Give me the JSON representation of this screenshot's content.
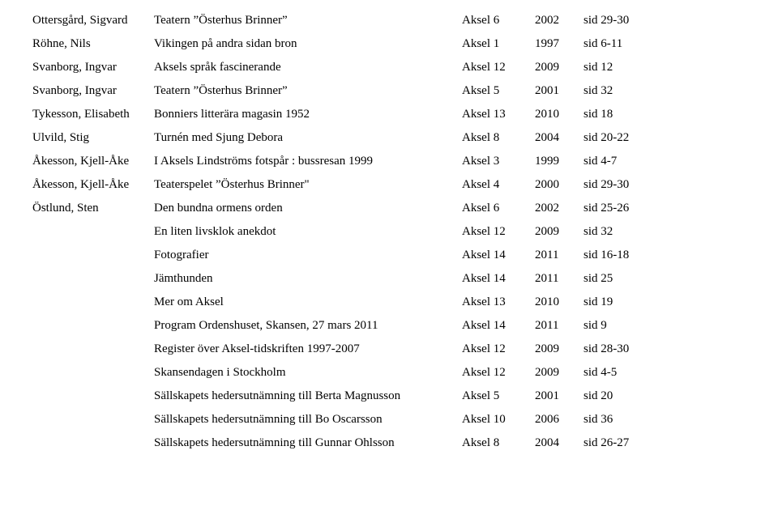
{
  "rows": [
    {
      "author": "Ottersgård, Sigvard",
      "title": "Teatern ”Österhus Brinner”",
      "vol": "Aksel 6",
      "year": "2002",
      "page": "sid 29-30"
    },
    {
      "author": "Röhne, Nils",
      "title": "Vikingen på andra sidan bron",
      "vol": "Aksel 1",
      "year": "1997",
      "page": "sid 6-11"
    },
    {
      "author": "Svanborg, Ingvar",
      "title": "Aksels språk fascinerande",
      "vol": "Aksel 12",
      "year": "2009",
      "page": "sid 12"
    },
    {
      "author": "Svanborg, Ingvar",
      "title": "Teatern ”Österhus Brinner”",
      "vol": "Aksel 5",
      "year": "2001",
      "page": "sid 32"
    },
    {
      "author": "Tykesson, Elisabeth",
      "title": "Bonniers litterära magasin 1952",
      "vol": "Aksel 13",
      "year": "2010",
      "page": "sid 18"
    },
    {
      "author": "Ulvild, Stig",
      "title": "Turnén med Sjung Debora",
      "vol": "Aksel 8",
      "year": "2004",
      "page": "sid 20-22"
    },
    {
      "author": "Åkesson, Kjell-Åke",
      "title": "I Aksels Lindströms fotspår : bussresan 1999",
      "vol": "Aksel 3",
      "year": "1999",
      "page": "sid 4-7"
    },
    {
      "author": "Åkesson, Kjell-Åke",
      "title": "Teaterspelet ”Österhus Brinner\"",
      "vol": "Aksel 4",
      "year": "2000",
      "page": "sid 29-30"
    },
    {
      "author": "Östlund, Sten",
      "title": "Den bundna ormens orden",
      "vol": "Aksel 6",
      "year": "2002",
      "page": "sid 25-26"
    },
    {
      "author": "",
      "title": "En liten livsklok anekdot",
      "vol": "Aksel 12",
      "year": "2009",
      "page": "sid 32"
    },
    {
      "author": "",
      "title": "Fotografier",
      "vol": "Aksel 14",
      "year": "2011",
      "page": "sid 16-18"
    },
    {
      "author": "",
      "title": "Jämthunden",
      "vol": "Aksel 14",
      "year": "2011",
      "page": "sid 25"
    },
    {
      "author": "",
      "title": "Mer om Aksel",
      "vol": "Aksel 13",
      "year": "2010",
      "page": "sid 19"
    },
    {
      "author": "",
      "title": "Program Ordenshuset, Skansen, 27 mars 2011",
      "vol": "Aksel 14",
      "year": "2011",
      "page": "sid 9"
    },
    {
      "author": "",
      "title": "Register över Aksel-tidskriften 1997-2007",
      "vol": "Aksel 12",
      "year": "2009",
      "page": "sid 28-30"
    },
    {
      "author": "",
      "title": "Skansendagen i Stockholm",
      "vol": "Aksel 12",
      "year": "2009",
      "page": "sid 4-5"
    },
    {
      "author": "",
      "title": "Sällskapets hedersutnämning till Berta Magnusson",
      "vol": "Aksel 5",
      "year": "2001",
      "page": "sid 20"
    },
    {
      "author": "",
      "title": "Sällskapets hedersutnämning till Bo Oscarsson",
      "vol": "Aksel 10",
      "year": "2006",
      "page": "sid 36"
    },
    {
      "author": "",
      "title": "Sällskapets hedersutnämning till Gunnar Ohlsson",
      "vol": "Aksel 8",
      "year": "2004",
      "page": "sid 26-27"
    }
  ]
}
